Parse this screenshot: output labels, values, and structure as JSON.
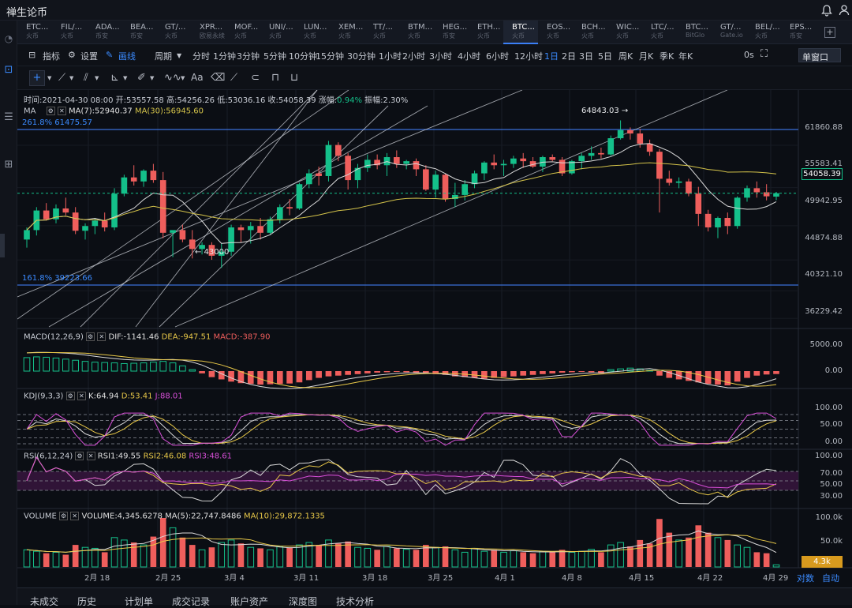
{
  "app": {
    "title": "禅生论币"
  },
  "tabs": [
    {
      "name": "ETC...",
      "sub": "火币"
    },
    {
      "name": "FIL/...",
      "sub": "火币"
    },
    {
      "name": "ADA...",
      "sub": "币安"
    },
    {
      "name": "BEA...",
      "sub": "币安"
    },
    {
      "name": "GT/...",
      "sub": "火币"
    },
    {
      "name": "XPR...",
      "sub": "欧易永续"
    },
    {
      "name": "MOF...",
      "sub": "火币"
    },
    {
      "name": "UNI/...",
      "sub": "火币"
    },
    {
      "name": "LUN...",
      "sub": "火币"
    },
    {
      "name": "XEM...",
      "sub": "火币"
    },
    {
      "name": "TT/...",
      "sub": "火币"
    },
    {
      "name": "BTM...",
      "sub": "火币"
    },
    {
      "name": "HEG...",
      "sub": "币安"
    },
    {
      "name": "ETH...",
      "sub": "火币"
    },
    {
      "name": "BTC...",
      "sub": "火币"
    },
    {
      "name": "EOS...",
      "sub": "火币"
    },
    {
      "name": "BCH...",
      "sub": "火币"
    },
    {
      "name": "WIC...",
      "sub": "火币"
    },
    {
      "name": "LTC/...",
      "sub": "火币"
    },
    {
      "name": "BTC...",
      "sub": "BitGlo"
    },
    {
      "name": "GT/...",
      "sub": "Gate.io"
    },
    {
      "name": "BEL/...",
      "sub": "火币"
    },
    {
      "name": "EPS...",
      "sub": "币安"
    }
  ],
  "active_tab": 14,
  "toolbar": {
    "indicator": "指标",
    "settings": "设置",
    "draw": "画线",
    "period": "周期",
    "periods": [
      "分时",
      "1分钟",
      "3分钟",
      "5分钟",
      "10分钟",
      "15分钟",
      "30分钟",
      "1小时",
      "2小时",
      "3小时",
      "4小时",
      "6小时",
      "12小时",
      "1日",
      "2日",
      "3日",
      "5日",
      "周K",
      "月K",
      "季K",
      "年K"
    ],
    "active_period": "1日",
    "timing": "0s",
    "window": "单窗口"
  },
  "info": {
    "time": "时间:2021-04-30 08:00",
    "open": "开:53557.58",
    "high": "高:54256.26",
    "low": "低:53036.16",
    "close": "收:54058.39",
    "change_label": "涨幅:",
    "change": "0.94%",
    "amplitude": "振幅:2.30%"
  },
  "ma": {
    "label": "MA",
    "ma7": "MA(7):52940.37",
    "ma30": "MA(30):56945.60"
  },
  "fib": {
    "top": "261.8% 61475.57",
    "bottom": "161.8% 39223.66"
  },
  "annotations": {
    "high": "64843.03 →",
    "low": "← 43000"
  },
  "price_axis": [
    "61860.88",
    "55583.41",
    "49942.95",
    "44874.88",
    "40321.10",
    "36229.42"
  ],
  "current_price": "54058.39",
  "macd": {
    "label": "MACD(12,26,9)",
    "dif": "DIF:-1141.46",
    "dea": "DEA:-947.51",
    "macd": "MACD:-387.90",
    "axis": [
      "5000.00",
      "0.00"
    ]
  },
  "kdj": {
    "label": "KDJ(9,3,3)",
    "k": "K:64.94",
    "d": "D:53.41",
    "j": "J:88.01",
    "axis": [
      "100.00",
      "50.00",
      "0.00"
    ]
  },
  "rsi": {
    "label": "RSI(6,12,24)",
    "r1": "RSI1:49.55",
    "r2": "RSI2:46.08",
    "r3": "RSI3:48.61",
    "axis": [
      "100.00",
      "70.00",
      "50.00",
      "30.00"
    ]
  },
  "volume": {
    "label": "VOLUME",
    "vol": "VOLUME:4,345.6278",
    "ma5": "MA(5):22,747.8486",
    "ma10": "MA(10):29,872.1335",
    "axis": [
      "100.0k",
      "50.0k"
    ],
    "current": "4.3k"
  },
  "x_axis": [
    "2月 18",
    "2月 25",
    "3月 4",
    "3月 11",
    "3月 18",
    "3月 25",
    "4月 1",
    "4月 8",
    "4月 15",
    "4月 22",
    "4月 29"
  ],
  "x_controls": {
    "log": "对数",
    "auto": "自动"
  },
  "bottom_tabs": [
    "未成交",
    "历史",
    "计划单",
    "成交记录",
    "账户资产",
    "深度图",
    "技术分析"
  ],
  "colors": {
    "up": "#14c08a",
    "down": "#ef5e5c",
    "ma7": "#d8d8d8",
    "ma30": "#d4c34a",
    "dea": "#e8c848",
    "j": "#d84fd8",
    "accent": "#3b8bff"
  },
  "chart_data": {
    "type": "candlestick",
    "symbol": "BTC/USDT",
    "interval": "1D",
    "ohlc": [
      [
        47200,
        49000,
        46000,
        48600
      ],
      [
        48600,
        52000,
        47800,
        51500
      ],
      [
        51500,
        52600,
        50000,
        50200
      ],
      [
        50200,
        52400,
        49600,
        51800
      ],
      [
        51800,
        53400,
        50800,
        51200
      ],
      [
        51200,
        52000,
        48000,
        48500
      ],
      [
        48500,
        49600,
        47200,
        49200
      ],
      [
        49200,
        50400,
        48000,
        50000
      ],
      [
        50000,
        51200,
        48400,
        49000
      ],
      [
        49000,
        54800,
        48600,
        54000
      ],
      [
        54000,
        56800,
        53600,
        56400
      ],
      [
        56400,
        58200,
        55200,
        55800
      ],
      [
        55800,
        57600,
        55000,
        57400
      ],
      [
        57400,
        58400,
        55600,
        56000
      ],
      [
        56000,
        57200,
        47400,
        48200
      ],
      [
        48200,
        48400,
        44600,
        48600
      ],
      [
        48600,
        49400,
        46800,
        47200
      ],
      [
        47200,
        48600,
        44400,
        45800
      ],
      [
        45800,
        46800,
        45000,
        46400
      ],
      [
        46400,
        46800,
        44200,
        44800
      ],
      [
        44800,
        46600,
        43000,
        45400
      ],
      [
        45400,
        49400,
        44800,
        49000
      ],
      [
        49000,
        49400,
        46800,
        48600
      ],
      [
        48600,
        49800,
        46600,
        49200
      ],
      [
        49200,
        50400,
        47200,
        48200
      ],
      [
        48200,
        50600,
        48000,
        50200
      ],
      [
        50200,
        52400,
        49600,
        52000
      ],
      [
        52000,
        53200,
        50800,
        51800
      ],
      [
        51800,
        55600,
        51600,
        55400
      ],
      [
        55400,
        57600,
        54800,
        57000
      ],
      [
        57000,
        58000,
        55200,
        56600
      ],
      [
        56600,
        61800,
        55800,
        61200
      ],
      [
        61200,
        61600,
        58800,
        59600
      ],
      [
        59600,
        60000,
        54600,
        56000
      ],
      [
        56000,
        58400,
        54800,
        57800
      ],
      [
        57800,
        59800,
        57200,
        59000
      ],
      [
        59000,
        59800,
        57600,
        58200
      ],
      [
        58200,
        60000,
        56600,
        59400
      ],
      [
        59400,
        60400,
        57800,
        58400
      ],
      [
        58400,
        59000,
        57600,
        58800
      ],
      [
        58800,
        59200,
        56600,
        57600
      ],
      [
        57600,
        58200,
        54400,
        54600
      ],
      [
        54600,
        57400,
        53400,
        56800
      ],
      [
        56800,
        57000,
        52800,
        53200
      ],
      [
        53200,
        55600,
        52000,
        53800
      ],
      [
        53800,
        56000,
        53000,
        55400
      ],
      [
        55400,
        57400,
        54800,
        57000
      ],
      [
        57000,
        58800,
        56000,
        58600
      ],
      [
        58600,
        59800,
        57600,
        58200
      ],
      [
        58200,
        59000,
        56600,
        58400
      ],
      [
        58400,
        59600,
        57800,
        59200
      ],
      [
        59200,
        60000,
        57800,
        58800
      ],
      [
        58800,
        59400,
        57800,
        58000
      ],
      [
        58000,
        59600,
        57200,
        59400
      ],
      [
        59400,
        59800,
        58800,
        59000
      ],
      [
        59000,
        59400,
        56600,
        57000
      ],
      [
        57000,
        59000,
        56800,
        58800
      ],
      [
        58800,
        60000,
        57600,
        59600
      ],
      [
        59600,
        61000,
        59000,
        60000
      ],
      [
        60000,
        60800,
        59200,
        59800
      ],
      [
        59800,
        62600,
        59600,
        62200
      ],
      [
        62200,
        64843,
        62000,
        63400
      ],
      [
        63400,
        63800,
        62000,
        62900
      ],
      [
        62900,
        63600,
        60800,
        61400
      ],
      [
        61400,
        62000,
        59600,
        60200
      ],
      [
        60200,
        60600,
        51200,
        56200
      ],
      [
        56200,
        57400,
        55200,
        55600
      ],
      [
        55600,
        56400,
        54800,
        55800
      ],
      [
        55800,
        56200,
        53600,
        54000
      ],
      [
        54000,
        55000,
        49200,
        51000
      ],
      [
        51000,
        51600,
        48400,
        49000
      ],
      [
        49000,
        50600,
        47400,
        50400
      ],
      [
        50400,
        51200,
        48000,
        49200
      ],
      [
        49200,
        53600,
        48800,
        53400
      ],
      [
        53400,
        55200,
        52800,
        54800
      ],
      [
        54800,
        55800,
        53400,
        54200
      ],
      [
        54200,
        55400,
        53000,
        53600
      ],
      [
        53557.58,
        54256.26,
        53036.16,
        54058.39
      ]
    ],
    "price_range": [
      34500,
      67000
    ],
    "ma7_last": 52940.37,
    "ma30_last": 56945.6,
    "fib_levels": [
      {
        "label": "261.8%",
        "value": 61475.57
      },
      {
        "label": "161.8%",
        "value": 39223.66
      }
    ],
    "annotated_high": 64843.03,
    "annotated_low": 43000,
    "y_ticks": [
      61860.88,
      55583.41,
      49942.95,
      44874.88,
      40321.1,
      36229.42
    ],
    "x_ticks": [
      "2月 18",
      "2月 25",
      "3月 4",
      "3月 11",
      "3月 18",
      "3月 25",
      "4月 1",
      "4月 8",
      "4月 15",
      "4月 22",
      "4月 29"
    ],
    "macd": {
      "dif": -1141.46,
      "dea": -947.51,
      "hist": -387.9,
      "hist_series": [
        1800,
        1900,
        1850,
        1750,
        1600,
        1450,
        1300,
        1200,
        1150,
        1100,
        1000,
        1050,
        1100,
        1200,
        1300,
        1100,
        700,
        200,
        -300,
        -800,
        -1100,
        -1400,
        -1600,
        -1700,
        -1800,
        -1750,
        -1700,
        -1650,
        -1500,
        -1200,
        -900,
        -700,
        -600,
        -500,
        -400,
        -300,
        -200,
        -150,
        -100,
        -150,
        -200,
        -300,
        -400,
        -500,
        -700,
        -800,
        -900,
        -1000,
        -900,
        -800,
        -700,
        -600,
        -500,
        -400,
        -300,
        -200,
        -150,
        -100,
        -150,
        -300,
        200,
        300,
        400,
        300,
        100,
        -600,
        -900,
        -1100,
        -1300,
        -1500,
        -1700,
        -1800,
        -1900,
        -1400,
        -900,
        -600,
        -450,
        -388
      ]
    },
    "kdj": {
      "k": 64.94,
      "d": 53.41,
      "j": 88.01
    },
    "rsi": {
      "rsi6": 49.55,
      "rsi12": 46.08,
      "rsi24": 48.61
    },
    "volume": {
      "last": 4345.6278,
      "ma5": 22747.8486,
      "ma10": 29872.1335,
      "series": [
        35000,
        32000,
        28000,
        30000,
        25000,
        45000,
        40000,
        38000,
        30000,
        60000,
        55000,
        50000,
        45000,
        62000,
        100000,
        80000,
        60000,
        45000,
        35000,
        40000,
        50000,
        55000,
        48000,
        40000,
        38000,
        35000,
        42000,
        40000,
        45000,
        50000,
        45000,
        55000,
        48000,
        52000,
        40000,
        38000,
        35000,
        42000,
        38000,
        36000,
        35000,
        45000,
        40000,
        42000,
        35000,
        30000,
        38000,
        32000,
        35000,
        30000,
        33000,
        30000,
        28000,
        32000,
        30000,
        35000,
        30000,
        32000,
        36000,
        30000,
        45000,
        50000,
        42000,
        55000,
        48000,
        98000,
        70000,
        55000,
        60000,
        85000,
        70000,
        60000,
        55000,
        45000,
        40000,
        30000,
        28000,
        4345
      ]
    }
  }
}
